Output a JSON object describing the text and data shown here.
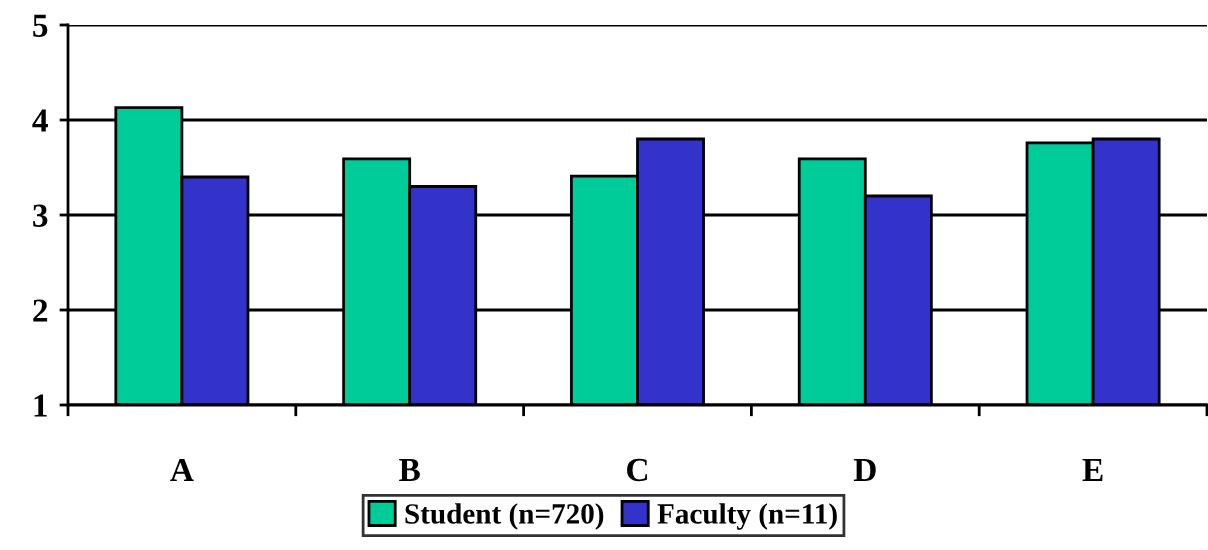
{
  "chart_data": {
    "type": "bar",
    "categories": [
      "A",
      "B",
      "C",
      "D",
      "E"
    ],
    "series": [
      {
        "name": "Student (n=720)",
        "color": "#00cc99",
        "values": [
          4.13,
          3.59,
          3.41,
          3.59,
          3.76
        ]
      },
      {
        "name": "Faculty (n=11)",
        "color": "#3333cc",
        "values": [
          3.4,
          3.3,
          3.8,
          3.2,
          3.8
        ]
      }
    ],
    "ylim": [
      1,
      5
    ],
    "yticks": [
      1,
      2,
      3,
      4,
      5
    ],
    "grid": "y",
    "legend": "bottom"
  }
}
